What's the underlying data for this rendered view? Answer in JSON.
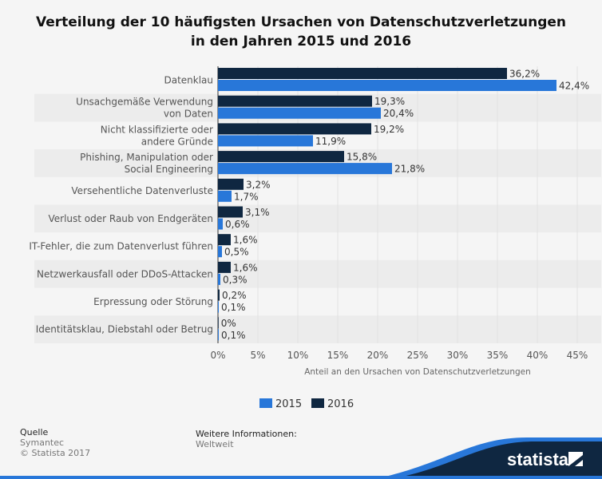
{
  "chart_data": {
    "type": "bar",
    "orientation": "horizontal",
    "title": "Verteilung der 10 häufigsten Ursachen von Datenschutzverletzungen in den Jahren 2015 und 2016",
    "title_lines": [
      "Verteilung der 10 häufigsten Ursachen von Datenschutzverletzungen",
      "in den Jahren 2015 und 2016"
    ],
    "categories": [
      [
        "Datenklau"
      ],
      [
        "Unsachgemäße Verwendung",
        "von Daten"
      ],
      [
        "Nicht klassifizierte oder",
        "andere Gründe"
      ],
      [
        "Phishing, Manipulation oder",
        "Social Engineering"
      ],
      [
        "Versehentliche Datenverluste"
      ],
      [
        "Verlust oder Raub von Endgeräten"
      ],
      [
        "IT-Fehler, die zum Datenverlust führen"
      ],
      [
        "Netzwerkausfall oder DDoS-Attacken"
      ],
      [
        "Erpressung oder Störung"
      ],
      [
        "Identitätsklau, Diebstahl oder Betrug"
      ]
    ],
    "series": [
      {
        "name": "2016",
        "color": "#0f2741",
        "values": [
          36.2,
          19.3,
          19.2,
          15.8,
          3.2,
          3.1,
          1.6,
          1.6,
          0.2,
          0
        ],
        "labels": [
          "36,2%",
          "19,3%",
          "19,2%",
          "15,8%",
          "3,2%",
          "3,1%",
          "1,6%",
          "1,6%",
          "0,2%",
          "0%"
        ]
      },
      {
        "name": "2015",
        "color": "#2877d9",
        "values": [
          42.4,
          20.4,
          11.9,
          21.8,
          1.7,
          0.6,
          0.5,
          0.3,
          0.1,
          0.1
        ],
        "labels": [
          "42,4%",
          "20,4%",
          "11,9%",
          "21,8%",
          "1,7%",
          "0,6%",
          "0,5%",
          "0,3%",
          "0,1%",
          "0,1%"
        ]
      }
    ],
    "xlim": [
      0,
      45
    ],
    "xticks": [
      "0%",
      "5%",
      "10%",
      "15%",
      "20%",
      "25%",
      "30%",
      "35%",
      "40%",
      "45%"
    ],
    "xlabel": "Anteil an den Ursachen von Datenschutzverletzungen",
    "legend": [
      "2015",
      "2016"
    ],
    "legend_placement": "bottom",
    "grid": true
  },
  "footer": {
    "source_label": "Quelle",
    "source": "Symantec",
    "copyright": "© Statista 2017",
    "info_label": "Weitere Informationen:",
    "info": "Weltweit",
    "logo": "statista"
  }
}
